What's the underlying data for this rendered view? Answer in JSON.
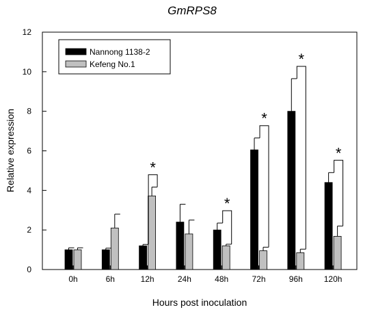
{
  "chart_data": {
    "type": "bar",
    "title": "GmRPS8",
    "xlabel": "Hours post inoculation",
    "ylabel": "Relative expression",
    "categories": [
      "0h",
      "6h",
      "12h",
      "24h",
      "48h",
      "72h",
      "96h",
      "120h"
    ],
    "ylim": [
      0,
      12
    ],
    "yticks": [
      "0",
      "2",
      "4",
      "6",
      "8",
      "10",
      "12"
    ],
    "legend_position": "top-left",
    "grid": false,
    "series": [
      {
        "name": "Nannong 1138-2",
        "color": "#000000",
        "values": [
          1.0,
          1.0,
          1.2,
          2.4,
          2.0,
          6.05,
          8.0,
          4.4
        ],
        "errors": [
          0.1,
          0.08,
          0.07,
          0.9,
          0.35,
          0.6,
          1.65,
          0.5
        ]
      },
      {
        "name": "Kefeng No.1",
        "color": "#c0c0c0",
        "values": [
          1.0,
          2.1,
          3.72,
          1.8,
          1.2,
          0.95,
          0.85,
          1.68
        ],
        "errors": [
          0.1,
          0.7,
          0.45,
          0.7,
          0.08,
          0.18,
          0.18,
          0.52
        ]
      }
    ],
    "significance": [
      {
        "category": "12h",
        "label": "*"
      },
      {
        "category": "48h",
        "label": "*"
      },
      {
        "category": "72h",
        "label": "*"
      },
      {
        "category": "96h",
        "label": "*"
      },
      {
        "category": "120h",
        "label": "*"
      }
    ]
  }
}
